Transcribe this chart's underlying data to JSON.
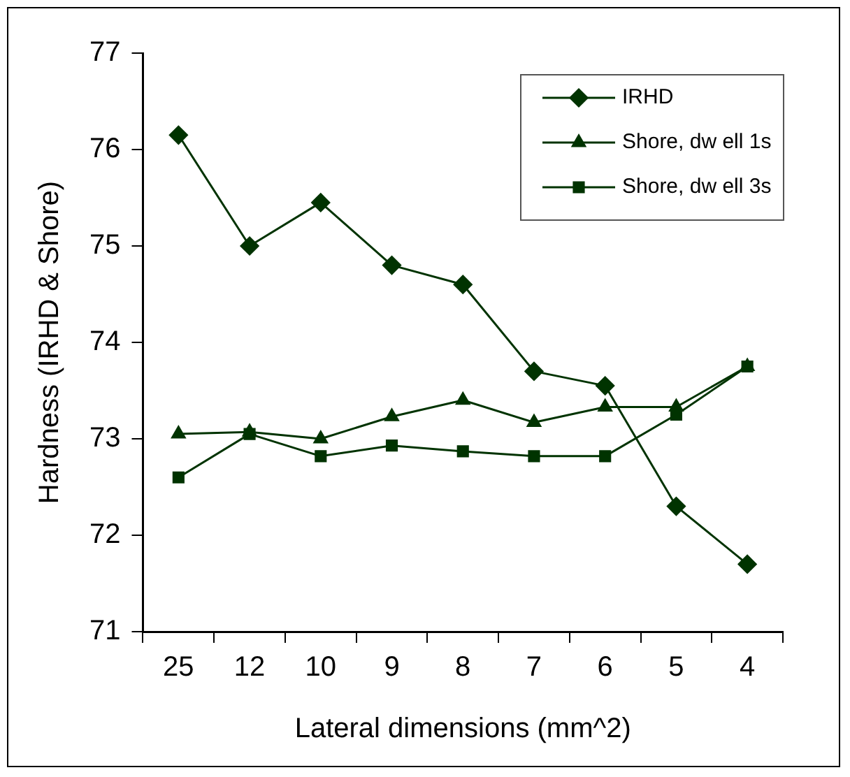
{
  "chart_data": {
    "type": "line",
    "xlabel": "Lateral dimensions (mm^2)",
    "ylabel": "Hardness (IRHD & Shore)",
    "categories": [
      "25",
      "12",
      "10",
      "9",
      "8",
      "7",
      "6",
      "5",
      "4"
    ],
    "ylim": [
      71,
      77
    ],
    "yticks": [
      71,
      72,
      73,
      74,
      75,
      76,
      77
    ],
    "grid": false,
    "legend": "top right",
    "line_style": "solid",
    "series": [
      {
        "name": "IRHD",
        "color": "#003300",
        "marker": "diamond",
        "values": [
          76.15,
          75.0,
          75.45,
          74.8,
          74.6,
          73.7,
          73.55,
          72.3,
          71.7
        ]
      },
      {
        "name": "Shore, dw ell 1s",
        "color": "#003300",
        "marker": "triangle",
        "values": [
          73.05,
          73.07,
          73.0,
          73.23,
          73.4,
          73.17,
          73.33,
          73.33,
          73.75
        ]
      },
      {
        "name": "Shore, dw ell 3s",
        "color": "#003300",
        "marker": "square",
        "values": [
          72.6,
          73.05,
          72.82,
          72.93,
          72.87,
          72.82,
          72.82,
          73.25,
          73.75
        ]
      }
    ]
  }
}
